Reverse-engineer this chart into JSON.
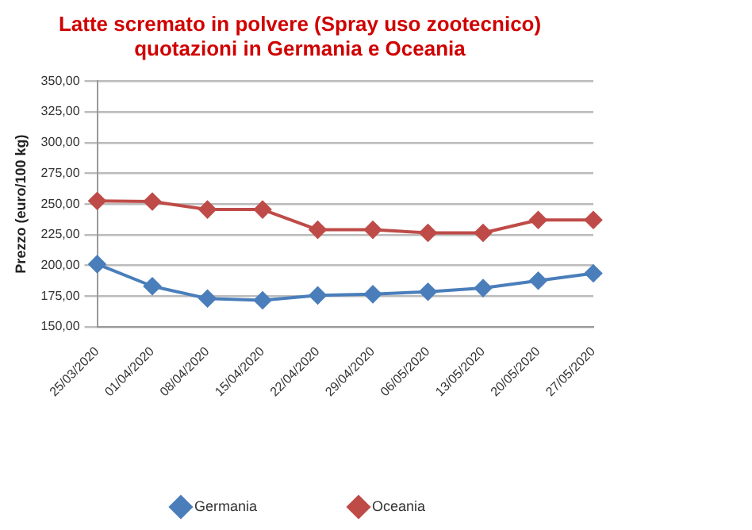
{
  "chart_data": {
    "type": "line",
    "title": "Latte scremato in polvere (Spray uso zootecnico)\nquotazioni in Germania e Oceania",
    "ylabel": "Prezzo (euro/100 kg)",
    "categories": [
      "25/03/2020",
      "01/04/2020",
      "08/04/2020",
      "15/04/2020",
      "22/04/2020",
      "29/04/2020",
      "06/05/2020",
      "13/05/2020",
      "20/05/2020",
      "27/05/2020"
    ],
    "series": [
      {
        "name": "Germania",
        "color": "#4a7ebb",
        "values": [
          201,
          183,
          173,
          171.5,
          175.5,
          176.5,
          178.5,
          181.5,
          187.5,
          193.5
        ]
      },
      {
        "name": "Oceania",
        "color": "#be4b48",
        "values": [
          252.5,
          252,
          245.5,
          245.5,
          229,
          229,
          226.5,
          226.5,
          237,
          237
        ]
      }
    ],
    "ylim": [
      150,
      350
    ],
    "yticks": [
      {
        "value": 150,
        "label": "150,00"
      },
      {
        "value": 175,
        "label": "175,00"
      },
      {
        "value": 200,
        "label": "200,00"
      },
      {
        "value": 225,
        "label": "225,00"
      },
      {
        "value": 250,
        "label": "250,00"
      },
      {
        "value": 275,
        "label": "275,00"
      },
      {
        "value": 300,
        "label": "300,00"
      },
      {
        "value": 325,
        "label": "325,00"
      },
      {
        "value": 350,
        "label": "350,00"
      }
    ],
    "grid": "y",
    "legend": "bottom",
    "marker": "diamond",
    "line_style": "solid"
  }
}
